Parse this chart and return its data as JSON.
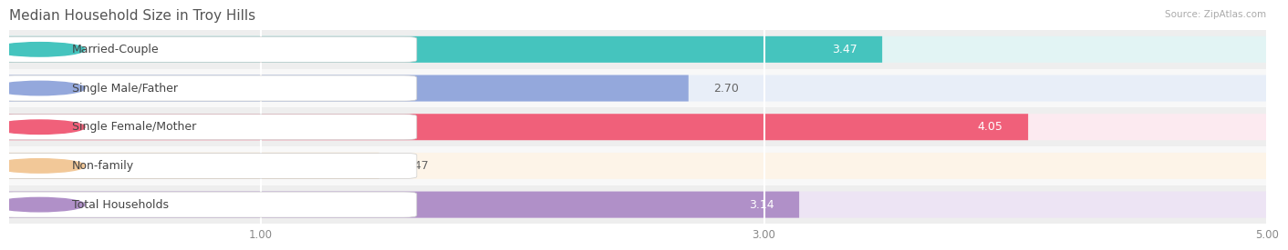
{
  "title": "Median Household Size in Troy Hills",
  "source": "Source: ZipAtlas.com",
  "categories": [
    "Married-Couple",
    "Single Male/Father",
    "Single Female/Mother",
    "Non-family",
    "Total Households"
  ],
  "values": [
    3.47,
    2.7,
    4.05,
    1.47,
    3.14
  ],
  "bar_colors": [
    "#45C4BE",
    "#94A8DC",
    "#F0607A",
    "#F2C898",
    "#B090C8"
  ],
  "bar_bg_colors": [
    "#E2F4F4",
    "#E8EEF8",
    "#FCEAF0",
    "#FDF4E8",
    "#EDE4F4"
  ],
  "row_bg_colors": [
    "#EEEEEE",
    "#F8F8F8",
    "#EEEEEE",
    "#F8F8F8",
    "#EEEEEE"
  ],
  "xlim": [
    0,
    5.0
  ],
  "xticks": [
    1.0,
    3.0,
    5.0
  ],
  "value_fontsize": 9,
  "label_fontsize": 9,
  "title_fontsize": 11,
  "background_color": "#FFFFFF"
}
